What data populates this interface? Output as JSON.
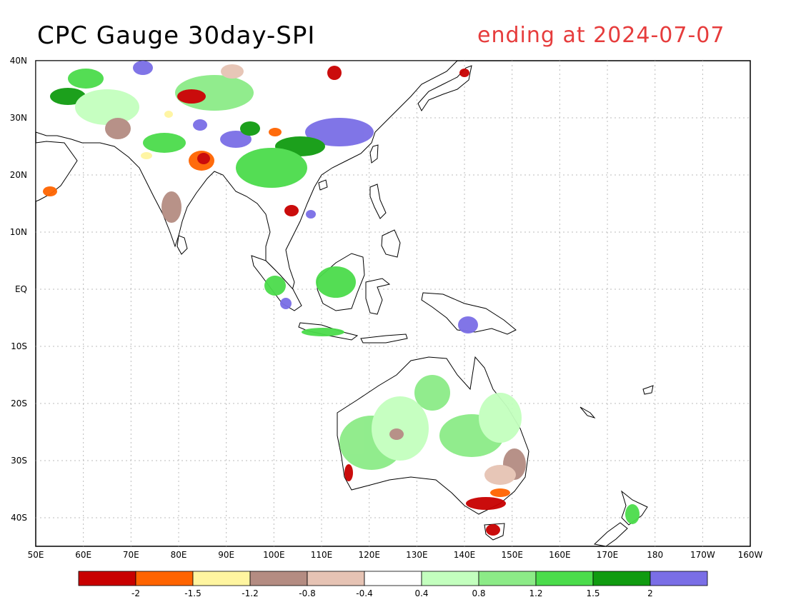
{
  "title": "CPC Gauge 30day-SPI",
  "subtitle": "ending at 2024-07-07",
  "lat_labels": [
    "40N",
    "30N",
    "20N",
    "10N",
    "EQ",
    "10S",
    "20S",
    "30S",
    "40S"
  ],
  "lon_labels": [
    "50E",
    "60E",
    "70E",
    "80E",
    "90E",
    "100E",
    "110E",
    "120E",
    "130E",
    "140E",
    "150E",
    "160E",
    "170E",
    "180",
    "170W",
    "160W"
  ],
  "legend": {
    "colors": [
      "#c80000",
      "#ff6400",
      "#fff5a0",
      "#b48c82",
      "#e6c3b4",
      "#ffffff",
      "#c3ffbe",
      "#8ceb87",
      "#4bdc4b",
      "#109b10",
      "#7a6ee6"
    ],
    "labels": [
      "-2",
      "-1.5",
      "-1.2",
      "-0.8",
      "-0.4",
      "0.4",
      "0.8",
      "1.2",
      "1.5",
      "2"
    ]
  }
}
